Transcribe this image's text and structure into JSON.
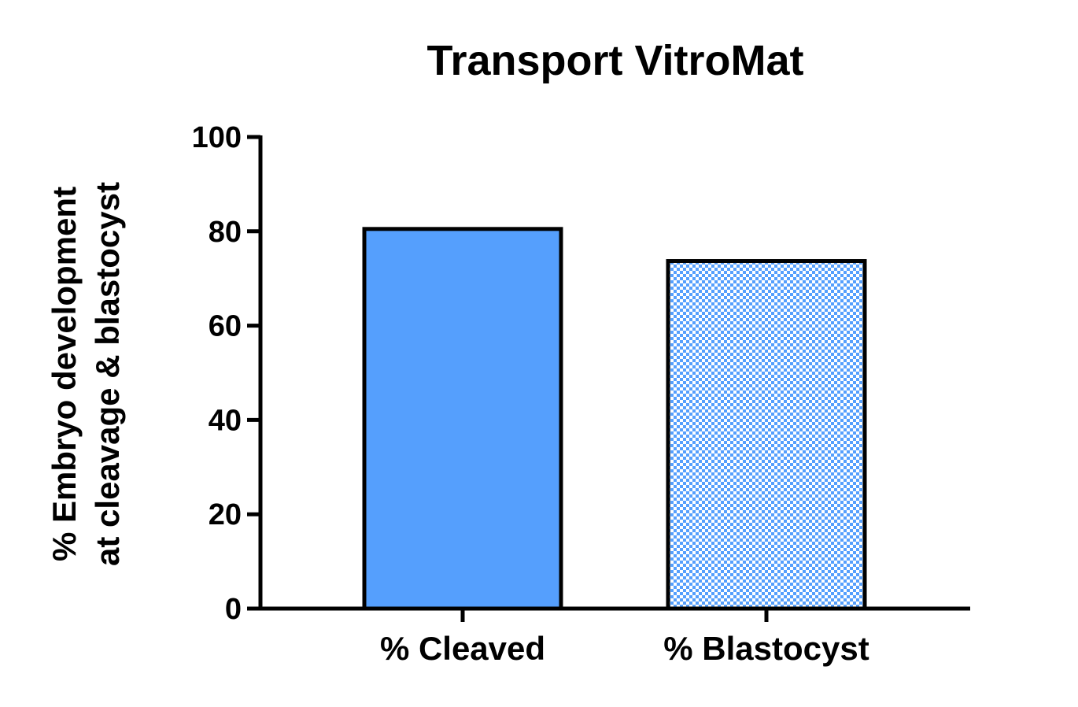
{
  "chart_data": {
    "type": "bar",
    "title": "Transport VitroMat",
    "xlabel": "",
    "ylabel_lines": [
      "% Embryo development",
      "at cleavage & blastocyst"
    ],
    "categories": [
      "% Cleaved",
      "% Blastocyst"
    ],
    "values": [
      80.5,
      73.7
    ],
    "ylim": [
      0,
      100
    ],
    "yticks": [
      0,
      20,
      40,
      60,
      80,
      100
    ],
    "grid": false,
    "bar_fills": [
      "solid",
      "checkered"
    ],
    "colors": {
      "bar": "#559ffd",
      "checker_light": "#ffffff",
      "stroke": "#000000"
    }
  }
}
